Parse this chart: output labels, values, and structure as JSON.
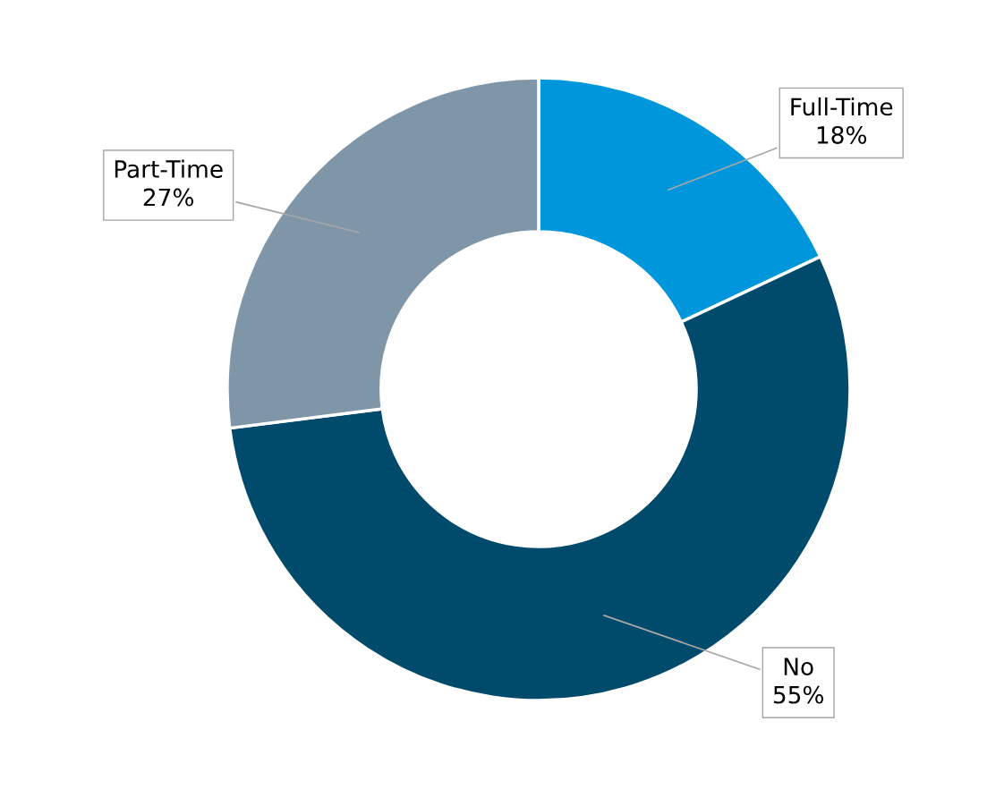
{
  "chart_data": {
    "type": "donut",
    "categories": [
      "Full-Time",
      "No",
      "Part-Time"
    ],
    "values": [
      18,
      55,
      27
    ],
    "value_labels": [
      "18%",
      "55%",
      "27%"
    ],
    "colors": [
      "#0096db",
      "#004a6b",
      "#7f96a9"
    ],
    "legend": false
  }
}
